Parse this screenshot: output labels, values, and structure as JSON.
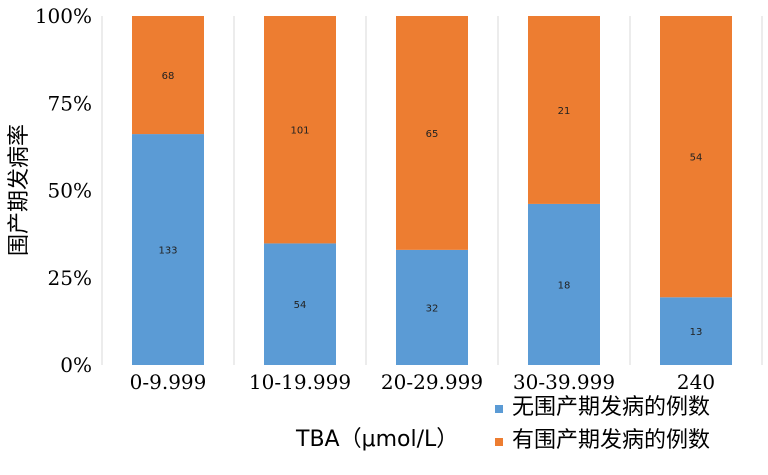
{
  "chart_data": {
    "type": "bar",
    "stacked": "percent",
    "categories": [
      "0-9.999",
      "10-19.999",
      "20-29.999",
      "30-39.999",
      "240"
    ],
    "series": [
      {
        "name": "无围产期发病的例数",
        "color": "#5b9bd5",
        "values": [
          133,
          54,
          32,
          18,
          13
        ]
      },
      {
        "name": "有围产期发病的例数",
        "color": "#ed7d31",
        "values": [
          68,
          101,
          65,
          21,
          54
        ]
      }
    ],
    "ylabel": "围产期发病率",
    "xlabel": "TBA（μmol/L）",
    "yticks": [
      "0%",
      "25%",
      "50%",
      "75%",
      "100%"
    ],
    "ylim": [
      0,
      100
    ],
    "grid": "vertical",
    "legend": "bottom-right"
  }
}
